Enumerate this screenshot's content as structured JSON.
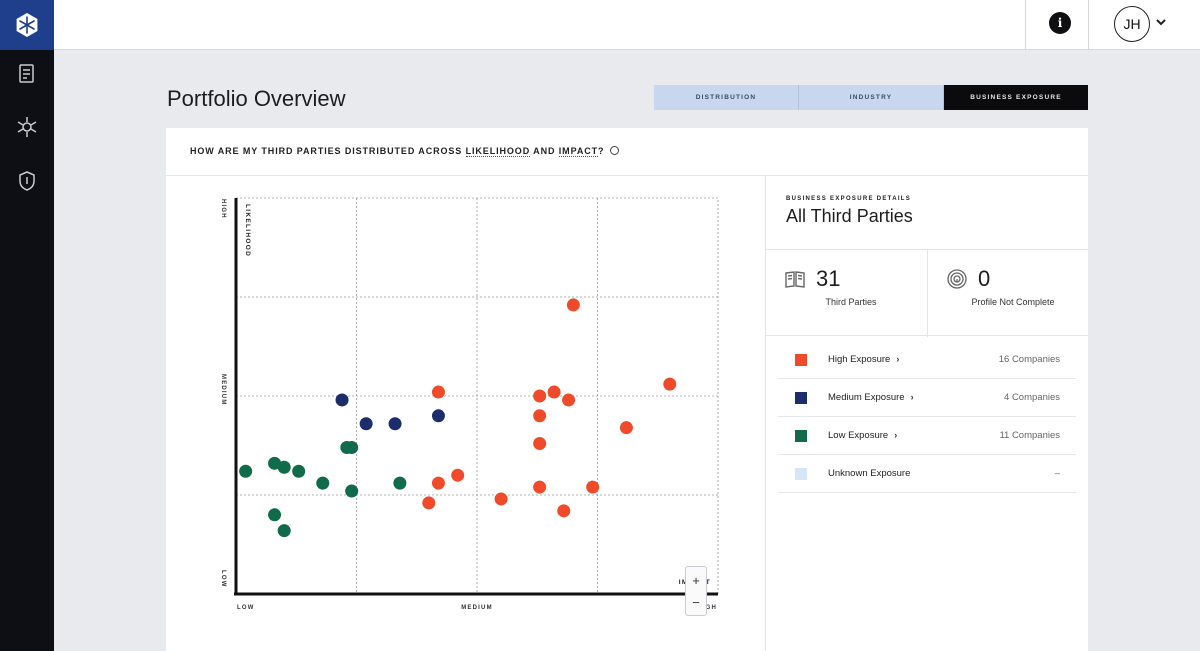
{
  "topbar": {
    "avatar_initials": "JH",
    "info_glyph": "i"
  },
  "page": {
    "title": "Portfolio Overview"
  },
  "tabs": [
    {
      "label": "DISTRIBUTION",
      "active": false
    },
    {
      "label": "INDUSTRY",
      "active": false
    },
    {
      "label": "BUSINESS EXPOSURE",
      "active": true
    }
  ],
  "question": {
    "pre": "HOW ARE MY THIRD PARTIES DISTRIBUTED ACROSS ",
    "likelihood": "LIKELIHOOD",
    "and": " AND ",
    "impact": "IMPACT",
    "end": "?"
  },
  "chart_data": {
    "type": "scatter",
    "x_axis": {
      "label": "IMPACT",
      "ticks": [
        "LOW",
        "MEDIUM",
        "HIGH"
      ],
      "range": [
        0,
        100
      ]
    },
    "y_axis": {
      "label": "LIKELIHOOD",
      "ticks": [
        "LOW",
        "MEDIUM",
        "HIGH"
      ],
      "range": [
        0,
        100
      ]
    },
    "grid": true,
    "colors": {
      "high": "#ef4b2b",
      "medium": "#1c2d6b",
      "low": "#0f6b4a"
    },
    "series": [
      {
        "category": "high",
        "points": [
          [
            70,
            73
          ],
          [
            90,
            53
          ],
          [
            42,
            51
          ],
          [
            66,
            51
          ],
          [
            63,
            50
          ],
          [
            69,
            49
          ],
          [
            63,
            45
          ],
          [
            63,
            38
          ],
          [
            81,
            42
          ],
          [
            46,
            30
          ],
          [
            42,
            28
          ],
          [
            63,
            27
          ],
          [
            74,
            27
          ],
          [
            55,
            24
          ],
          [
            40,
            23
          ],
          [
            68,
            21
          ]
        ]
      },
      {
        "category": "medium",
        "points": [
          [
            22,
            49
          ],
          [
            42,
            45
          ],
          [
            27,
            43
          ],
          [
            33,
            43
          ]
        ]
      },
      {
        "category": "low",
        "points": [
          [
            24,
            37
          ],
          [
            23,
            37
          ],
          [
            8,
            33
          ],
          [
            10,
            32
          ],
          [
            13,
            31
          ],
          [
            2,
            31
          ],
          [
            18,
            28
          ],
          [
            34,
            28
          ],
          [
            24,
            26
          ],
          [
            8,
            20
          ],
          [
            10,
            16
          ]
        ]
      }
    ]
  },
  "zoom": {
    "in": "+",
    "out": "−"
  },
  "details": {
    "label": "BUSINESS EXPOSURE DETAILS",
    "title": "All Third Parties",
    "stats": [
      {
        "icon": "book-icon",
        "value": "31",
        "label": "Third Parties"
      },
      {
        "icon": "fingerprint-icon",
        "value": "0",
        "label": "Profile Not Complete"
      }
    ],
    "legend": [
      {
        "name": "High Exposure",
        "count": "16 Companies",
        "color": "#ef4b2b",
        "chevron": "›"
      },
      {
        "name": "Medium Exposure",
        "count": "4 Companies",
        "color": "#1c2d6b",
        "chevron": "›"
      },
      {
        "name": "Low Exposure",
        "count": "11 Companies",
        "color": "#0f6b4a",
        "chevron": "›"
      },
      {
        "name": "Unknown Exposure",
        "count": "–",
        "color": "#d6e6f6",
        "chevron": ""
      }
    ]
  }
}
